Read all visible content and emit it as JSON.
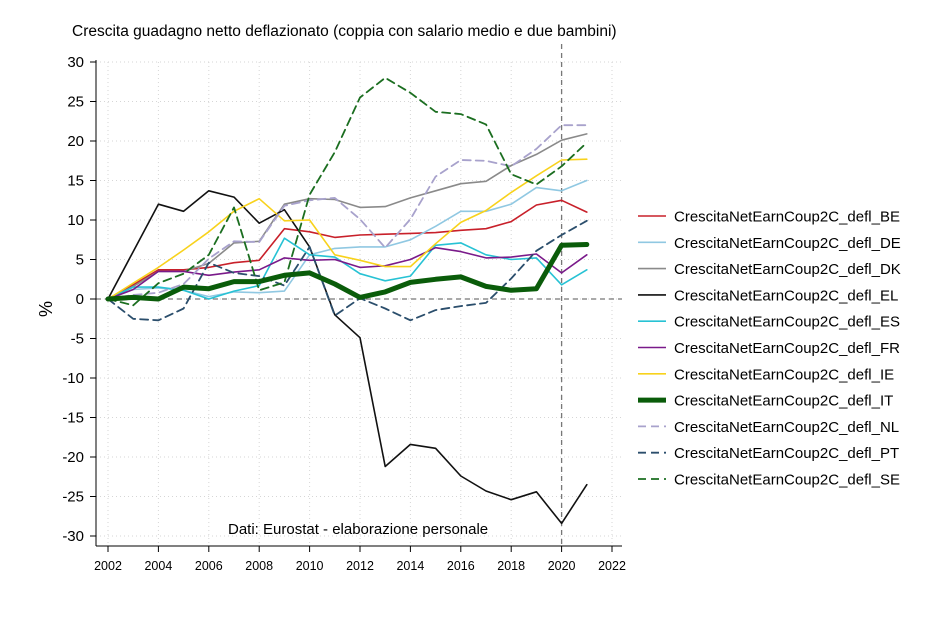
{
  "chart_data": {
    "type": "line",
    "title": "Crescita guadagno netto deflazionato (coppia con salario medio e due bambini)",
    "ylabel": "%",
    "xlabel": "",
    "source": "Dati: Eurostat - elaborazione personale",
    "xlim": [
      2002,
      2022
    ],
    "ylim": [
      -30,
      30
    ],
    "x_ticks": [
      2002,
      2004,
      2006,
      2008,
      2010,
      2012,
      2014,
      2016,
      2018,
      2020,
      2022
    ],
    "y_ticks": [
      30,
      25,
      20,
      15,
      10,
      5,
      0,
      -5,
      -10,
      -15,
      -20,
      -25,
      -30
    ],
    "reference_lines": {
      "y": 0,
      "x": 2020
    },
    "grid": true,
    "legend_position": "right",
    "x": [
      2002,
      2003,
      2004,
      2005,
      2006,
      2007,
      2008,
      2009,
      2010,
      2011,
      2012,
      2013,
      2014,
      2015,
      2016,
      2017,
      2018,
      2019,
      2020,
      2021
    ],
    "series": [
      {
        "name": "CrescitaNetEarnCoup2C_defl_BE",
        "color": "#c8202a",
        "dash": "solid",
        "width": 1.6,
        "values": [
          0,
          1.8,
          3.7,
          3.7,
          4.0,
          4.6,
          4.9,
          8.9,
          8.5,
          7.8,
          8.1,
          8.2,
          8.3,
          8.4,
          8.7,
          8.9,
          9.8,
          11.9,
          12.5,
          11.0
        ]
      },
      {
        "name": "CrescitaNetEarnCoup2C_defl_DE",
        "color": "#90c8e2",
        "dash": "solid",
        "width": 1.6,
        "values": [
          0,
          1.2,
          1.4,
          1.1,
          0.3,
          0.9,
          0.8,
          1.0,
          5.6,
          6.4,
          6.6,
          6.6,
          7.5,
          9.2,
          11.1,
          11.1,
          12.0,
          14.1,
          13.7,
          15.0
        ]
      },
      {
        "name": "CrescitaNetEarnCoup2C_defl_DK",
        "color": "#8a8a8a",
        "dash": "solid",
        "width": 1.6,
        "values": [
          0,
          1.6,
          3.5,
          3.5,
          4.5,
          7.1,
          7.3,
          12.0,
          12.7,
          12.6,
          11.6,
          11.7,
          12.8,
          13.7,
          14.6,
          14.9,
          16.9,
          18.3,
          20.1,
          20.9
        ]
      },
      {
        "name": "CrescitaNetEarnCoup2C_defl_EL",
        "color": "#111111",
        "dash": "solid",
        "width": 1.6,
        "values": [
          0,
          6.0,
          12.0,
          11.1,
          13.7,
          12.9,
          9.6,
          11.3,
          6.6,
          -2.0,
          -4.9,
          -21.2,
          -18.4,
          -18.9,
          -22.4,
          -24.3,
          -25.4,
          -24.4,
          -28.4,
          -23.5
        ]
      },
      {
        "name": "CrescitaNetEarnCoup2C_defl_ES",
        "color": "#27c2d4",
        "dash": "solid",
        "width": 1.6,
        "values": [
          0,
          1.5,
          1.5,
          1.1,
          0.0,
          1.0,
          1.7,
          7.7,
          5.6,
          5.3,
          3.2,
          2.3,
          2.9,
          6.8,
          7.1,
          5.6,
          5.0,
          5.2,
          1.8,
          3.7
        ]
      },
      {
        "name": "CrescitaNetEarnCoup2C_defl_FR",
        "color": "#7a1a8a",
        "dash": "solid",
        "width": 1.6,
        "values": [
          0,
          1.2,
          3.5,
          3.5,
          3.0,
          3.4,
          3.7,
          5.2,
          4.9,
          5.0,
          4.0,
          4.2,
          5.0,
          6.5,
          6.0,
          5.2,
          5.3,
          5.7,
          3.3,
          5.6
        ]
      },
      {
        "name": "CrescitaNetEarnCoup2C_defl_IE",
        "color": "#f8d21c",
        "dash": "solid",
        "width": 1.6,
        "values": [
          0,
          2.0,
          4.0,
          6.2,
          8.5,
          11.1,
          12.7,
          9.9,
          10.0,
          5.6,
          4.9,
          4.1,
          4.1,
          7.0,
          9.7,
          11.2,
          13.5,
          15.6,
          17.6,
          17.7
        ]
      },
      {
        "name": "CrescitaNetEarnCoup2C_defl_IT",
        "color": "#0a5c0a",
        "dash": "solid",
        "width": 5,
        "values": [
          0,
          0.2,
          0.0,
          1.5,
          1.3,
          2.2,
          2.2,
          3.0,
          3.3,
          1.9,
          0.2,
          0.9,
          2.1,
          2.5,
          2.8,
          1.6,
          1.1,
          1.3,
          6.8,
          6.9
        ]
      },
      {
        "name": "CrescitaNetEarnCoup2C_defl_NL",
        "color": "#a8a2cc",
        "dash": "dashed",
        "width": 1.8,
        "values": [
          0,
          0.5,
          0.8,
          1.9,
          5.1,
          7.3,
          7.2,
          11.8,
          12.5,
          12.8,
          10.1,
          6.5,
          10.1,
          15.5,
          17.6,
          17.5,
          16.8,
          19.0,
          22.0,
          22.0
        ]
      },
      {
        "name": "CrescitaNetEarnCoup2C_defl_PT",
        "color": "#2b4e6c",
        "dash": "dashed",
        "width": 1.8,
        "values": [
          0,
          -2.5,
          -2.7,
          -1.2,
          4.6,
          3.3,
          2.9,
          1.7,
          6.6,
          -2.1,
          0.1,
          -1.2,
          -2.7,
          -1.4,
          -0.9,
          -0.5,
          2.6,
          6.1,
          8.1,
          9.9
        ]
      },
      {
        "name": "CrescitaNetEarnCoup2C_defl_SE",
        "color": "#1b6e20",
        "dash": "dashed",
        "width": 1.8,
        "values": [
          0,
          -0.8,
          2.0,
          3.2,
          5.6,
          11.6,
          1.1,
          2.1,
          13.2,
          18.6,
          25.5,
          28.0,
          26.1,
          23.7,
          23.4,
          22.1,
          15.8,
          14.5,
          16.8,
          19.8
        ]
      }
    ]
  }
}
